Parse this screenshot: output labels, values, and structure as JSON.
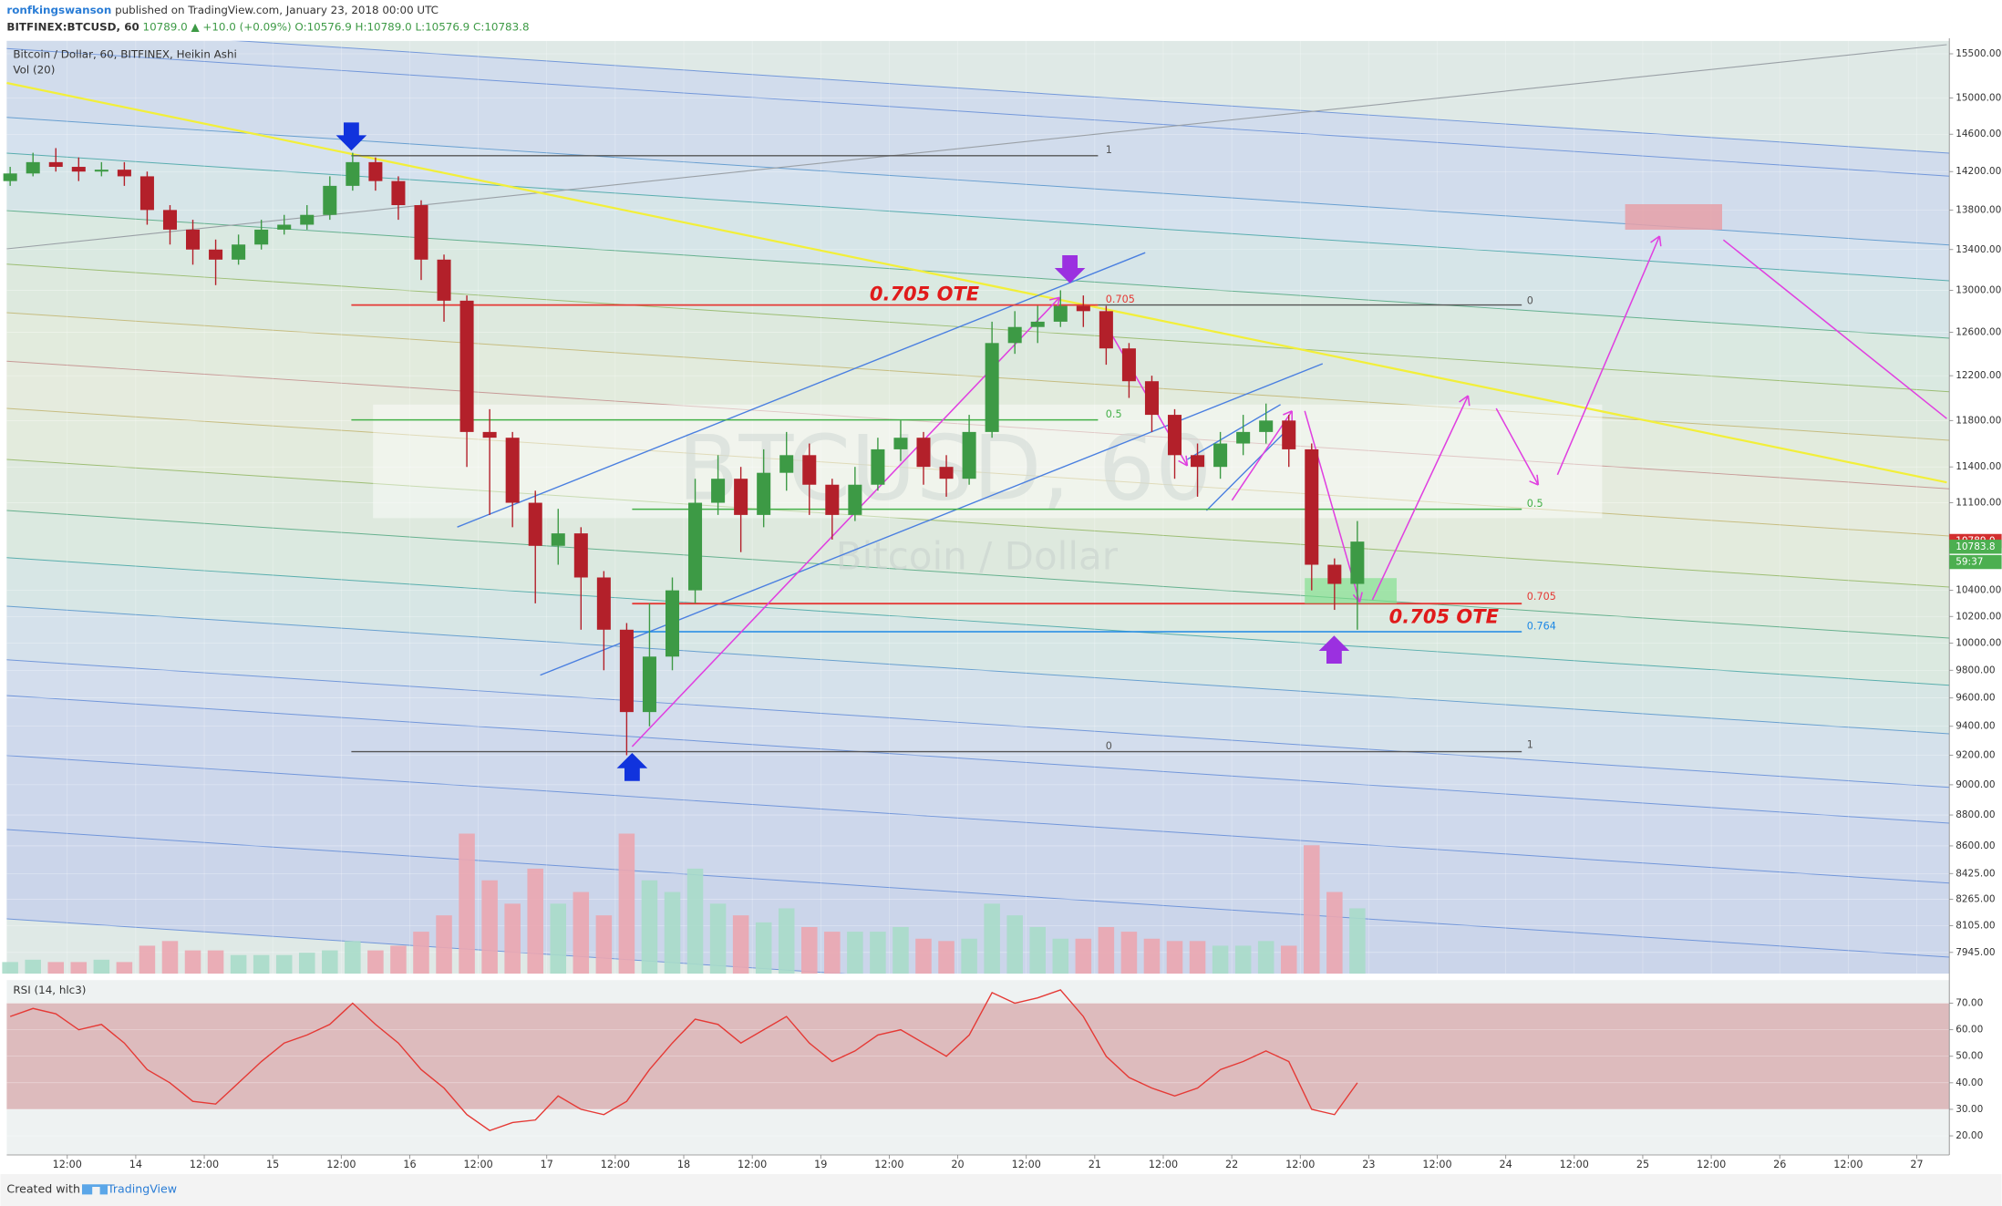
{
  "header": {
    "author": "ronfkingswanson",
    "published": "published on TradingView.com, January 23, 2018 00:00 UTC",
    "symbol": "BITFINEX:BTCUSD, 60",
    "last": "10789.0",
    "change": "▲ +10.0 (+0.09%)",
    "o": "O:10576.9",
    "h": "H:10789.0",
    "l": "L:10576.9",
    "c": "C:10783.8"
  },
  "chart_data": {
    "type": "candlestick",
    "title": "Bitcoin / Dollar, 60, BITFINEX, Heikin Ashi",
    "volume_label": "Vol (20)",
    "watermark": "BTCUSD, 60",
    "watermark_subtitle": "Bitcoin / Dollar",
    "up_color": "#3d9a45",
    "down_color": "#b3202a",
    "volume_up_color": "#a9dcc9",
    "volume_down_color": "#eba6b0",
    "log_scale": true,
    "x": [
      2,
      6,
      10,
      14,
      18,
      22,
      26,
      30,
      34,
      38,
      42,
      46,
      50,
      54,
      58,
      62,
      66,
      70,
      74,
      78,
      82,
      86,
      90,
      94,
      98,
      102,
      106,
      110,
      114,
      118,
      122,
      126,
      130,
      134,
      138,
      142,
      146,
      150,
      154,
      158,
      162,
      166,
      170,
      174,
      178,
      182,
      186,
      190,
      194,
      198,
      202,
      206,
      210,
      214,
      218,
      222,
      226,
      230,
      234,
      238
    ],
    "open": [
      14100,
      14180,
      14300,
      14250,
      14200,
      14220,
      14150,
      13800,
      13600,
      13400,
      13300,
      13450,
      13600,
      13650,
      13750,
      14050,
      14300,
      14100,
      13850,
      13300,
      12900,
      11700,
      11650,
      11100,
      10750,
      10850,
      10500,
      10100,
      9500,
      9900,
      10400,
      11100,
      11300,
      11000,
      11350,
      11500,
      11250,
      11000,
      11250,
      11550,
      11650,
      11400,
      11300,
      11700,
      12500,
      12650,
      12700,
      12850,
      12800,
      12450,
      12150,
      11850,
      11500,
      11400,
      11600,
      11700,
      11800,
      11550,
      10600,
      10450
    ],
    "high": [
      14250,
      14400,
      14450,
      14350,
      14300,
      14300,
      14200,
      13850,
      13700,
      13500,
      13550,
      13700,
      13750,
      13850,
      14150,
      14400,
      14350,
      14150,
      13900,
      13350,
      12950,
      11900,
      11700,
      11200,
      11050,
      10900,
      10550,
      10150,
      10300,
      10500,
      11300,
      11500,
      11400,
      11550,
      11700,
      11600,
      11300,
      11400,
      11650,
      11800,
      11700,
      11500,
      11850,
      12700,
      12800,
      12850,
      13000,
      12950,
      12850,
      12500,
      12200,
      11900,
      11600,
      11700,
      11850,
      11950,
      11850,
      11600,
      10650,
      10950
    ],
    "low": [
      14050,
      14150,
      14200,
      14100,
      14150,
      14050,
      13650,
      13450,
      13250,
      13050,
      13250,
      13400,
      13550,
      13600,
      13700,
      14000,
      14000,
      13700,
      13100,
      12700,
      11400,
      11000,
      10900,
      10300,
      10600,
      10100,
      9800,
      9200,
      9400,
      9800,
      10300,
      11000,
      10700,
      10900,
      11200,
      11000,
      10800,
      10950,
      11200,
      11450,
      11250,
      11150,
      11250,
      11650,
      12400,
      12500,
      12650,
      12650,
      12300,
      12000,
      11700,
      11300,
      11150,
      11300,
      11500,
      11600,
      11400,
      10400,
      10250,
      10100
    ],
    "close": [
      14180,
      14300,
      14250,
      14200,
      14220,
      14150,
      13800,
      13600,
      13400,
      13300,
      13450,
      13600,
      13650,
      13750,
      14050,
      14300,
      14100,
      13850,
      13300,
      12900,
      11700,
      11650,
      11100,
      10750,
      10850,
      10500,
      10100,
      9500,
      9900,
      10400,
      11100,
      11300,
      11000,
      11350,
      11500,
      11250,
      11000,
      11250,
      11550,
      11650,
      11400,
      11300,
      11700,
      12500,
      12650,
      12700,
      12850,
      12800,
      12450,
      12150,
      11850,
      11500,
      11400,
      11600,
      11700,
      11800,
      11550,
      10600,
      10450,
      10784
    ],
    "volume": [
      5,
      6,
      5,
      5,
      6,
      5,
      12,
      14,
      10,
      10,
      8,
      8,
      8,
      9,
      10,
      14,
      10,
      12,
      18,
      25,
      60,
      40,
      30,
      45,
      30,
      35,
      25,
      60,
      40,
      35,
      45,
      30,
      25,
      22,
      28,
      20,
      18,
      18,
      18,
      20,
      15,
      14,
      15,
      30,
      25,
      20,
      15,
      15,
      20,
      18,
      15,
      14,
      14,
      12,
      12,
      14,
      12,
      55,
      35,
      28
    ],
    "vlim": [
      0,
      100
    ],
    "xlim": [
      1.4,
      341.7
    ],
    "xticks": [
      {
        "value": 12,
        "label": "12:00"
      },
      {
        "value": 24,
        "label": "14"
      },
      {
        "value": 36,
        "label": "12:00"
      },
      {
        "value": 48,
        "label": "15"
      },
      {
        "value": 60,
        "label": "12:00"
      },
      {
        "value": 72,
        "label": "16"
      },
      {
        "value": 84,
        "label": "12:00"
      },
      {
        "value": 96,
        "label": "17"
      },
      {
        "value": 108,
        "label": "12:00"
      },
      {
        "value": 120,
        "label": "18"
      },
      {
        "value": 132,
        "label": "12:00"
      },
      {
        "value": 144,
        "label": "19"
      },
      {
        "value": 156,
        "label": "12:00"
      },
      {
        "value": 168,
        "label": "20"
      },
      {
        "value": 180,
        "label": "12:00"
      },
      {
        "value": 192,
        "label": "21"
      },
      {
        "value": 204,
        "label": "12:00"
      },
      {
        "value": 216,
        "label": "22"
      },
      {
        "value": 228,
        "label": "12:00"
      },
      {
        "value": 240,
        "label": "23"
      },
      {
        "value": 252,
        "label": "12:00"
      },
      {
        "value": 264,
        "label": "24"
      },
      {
        "value": 276,
        "label": "12:00"
      },
      {
        "value": 288,
        "label": "25"
      },
      {
        "value": 300,
        "label": "12:00"
      },
      {
        "value": 312,
        "label": "26"
      },
      {
        "value": 324,
        "label": "12:00"
      },
      {
        "value": 336,
        "label": "27"
      }
    ],
    "ylim": [
      7820,
      15650
    ],
    "yticks": [
      {
        "value": 15500,
        "label": "15500.00"
      },
      {
        "value": 15000,
        "label": "15000.00"
      },
      {
        "value": 14600,
        "label": "14600.00"
      },
      {
        "value": 14200,
        "label": "14200.00"
      },
      {
        "value": 13800,
        "label": "13800.00"
      },
      {
        "value": 13400,
        "label": "13400.00"
      },
      {
        "value": 13000,
        "label": "13000.00"
      },
      {
        "value": 12600,
        "label": "12600.00"
      },
      {
        "value": 12200,
        "label": "12200.00"
      },
      {
        "value": 11800,
        "label": "11800.00"
      },
      {
        "value": 11400,
        "label": "11400.00"
      },
      {
        "value": 11100,
        "label": "11100.00"
      },
      {
        "value": 10400,
        "label": "10400.00"
      },
      {
        "value": 10200,
        "label": "10200.00"
      },
      {
        "value": 10000,
        "label": "10000.00"
      },
      {
        "value": 9800,
        "label": "9800.00"
      },
      {
        "value": 9600,
        "label": "9600.00"
      },
      {
        "value": 9400,
        "label": "9400.00"
      },
      {
        "value": 9200,
        "label": "9200.00"
      },
      {
        "value": 9000,
        "label": "9000.00"
      },
      {
        "value": 8800,
        "label": "8800.00"
      },
      {
        "value": 8600,
        "label": "8600.00"
      },
      {
        "value": 8425,
        "label": "8425.00"
      },
      {
        "value": 8265,
        "label": "8265.00"
      },
      {
        "value": 8105,
        "label": "8105.00"
      },
      {
        "value": 7945,
        "label": "7945.00"
      }
    ],
    "price_labels": [
      {
        "value": 10789,
        "label": "10789.0",
        "color": "#d32f2f"
      },
      {
        "value": 10783.8,
        "label": "10783.8",
        "color": "#4caf50"
      }
    ],
    "countdown": "59:37",
    "annotations": {
      "fib_top_1": "1",
      "fib_top_0": "0",
      "fib_top_705": "0.705",
      "fib_top_5": "0.5",
      "fib_low_5": "0.5",
      "fib_low_705": "0.705",
      "fib_low_764": "0.764",
      "fib_low_0": "0",
      "fib_low_1": "1",
      "ote_1": "0.705 OTE",
      "ote_2": "0.705 OTE"
    },
    "rsi": {
      "label": "RSI (14, hlc3)",
      "color": "#e53935",
      "band": [
        30,
        70
      ],
      "values": [
        65,
        68,
        66,
        60,
        62,
        55,
        45,
        40,
        33,
        32,
        40,
        48,
        55,
        58,
        62,
        70,
        62,
        55,
        45,
        38,
        28,
        22,
        25,
        26,
        35,
        30,
        28,
        33,
        45,
        55,
        64,
        62,
        55,
        60,
        65,
        55,
        48,
        52,
        58,
        60,
        55,
        50,
        58,
        74,
        70,
        72,
        75,
        65,
        50,
        42,
        38,
        35,
        38,
        45,
        48,
        52,
        48,
        30,
        28,
        40
      ],
      "ylim": [
        12.8,
        78.7
      ],
      "yticks": [
        {
          "value": 70,
          "label": "70.00"
        },
        {
          "value": 60,
          "label": "60.00"
        },
        {
          "value": 50,
          "label": "50.00"
        },
        {
          "value": 40,
          "label": "40.00"
        },
        {
          "value": 30,
          "label": "30.00"
        },
        {
          "value": 20,
          "label": "20.00"
        }
      ]
    }
  },
  "footer": {
    "created": "Created with",
    "brand": "TradingView"
  }
}
